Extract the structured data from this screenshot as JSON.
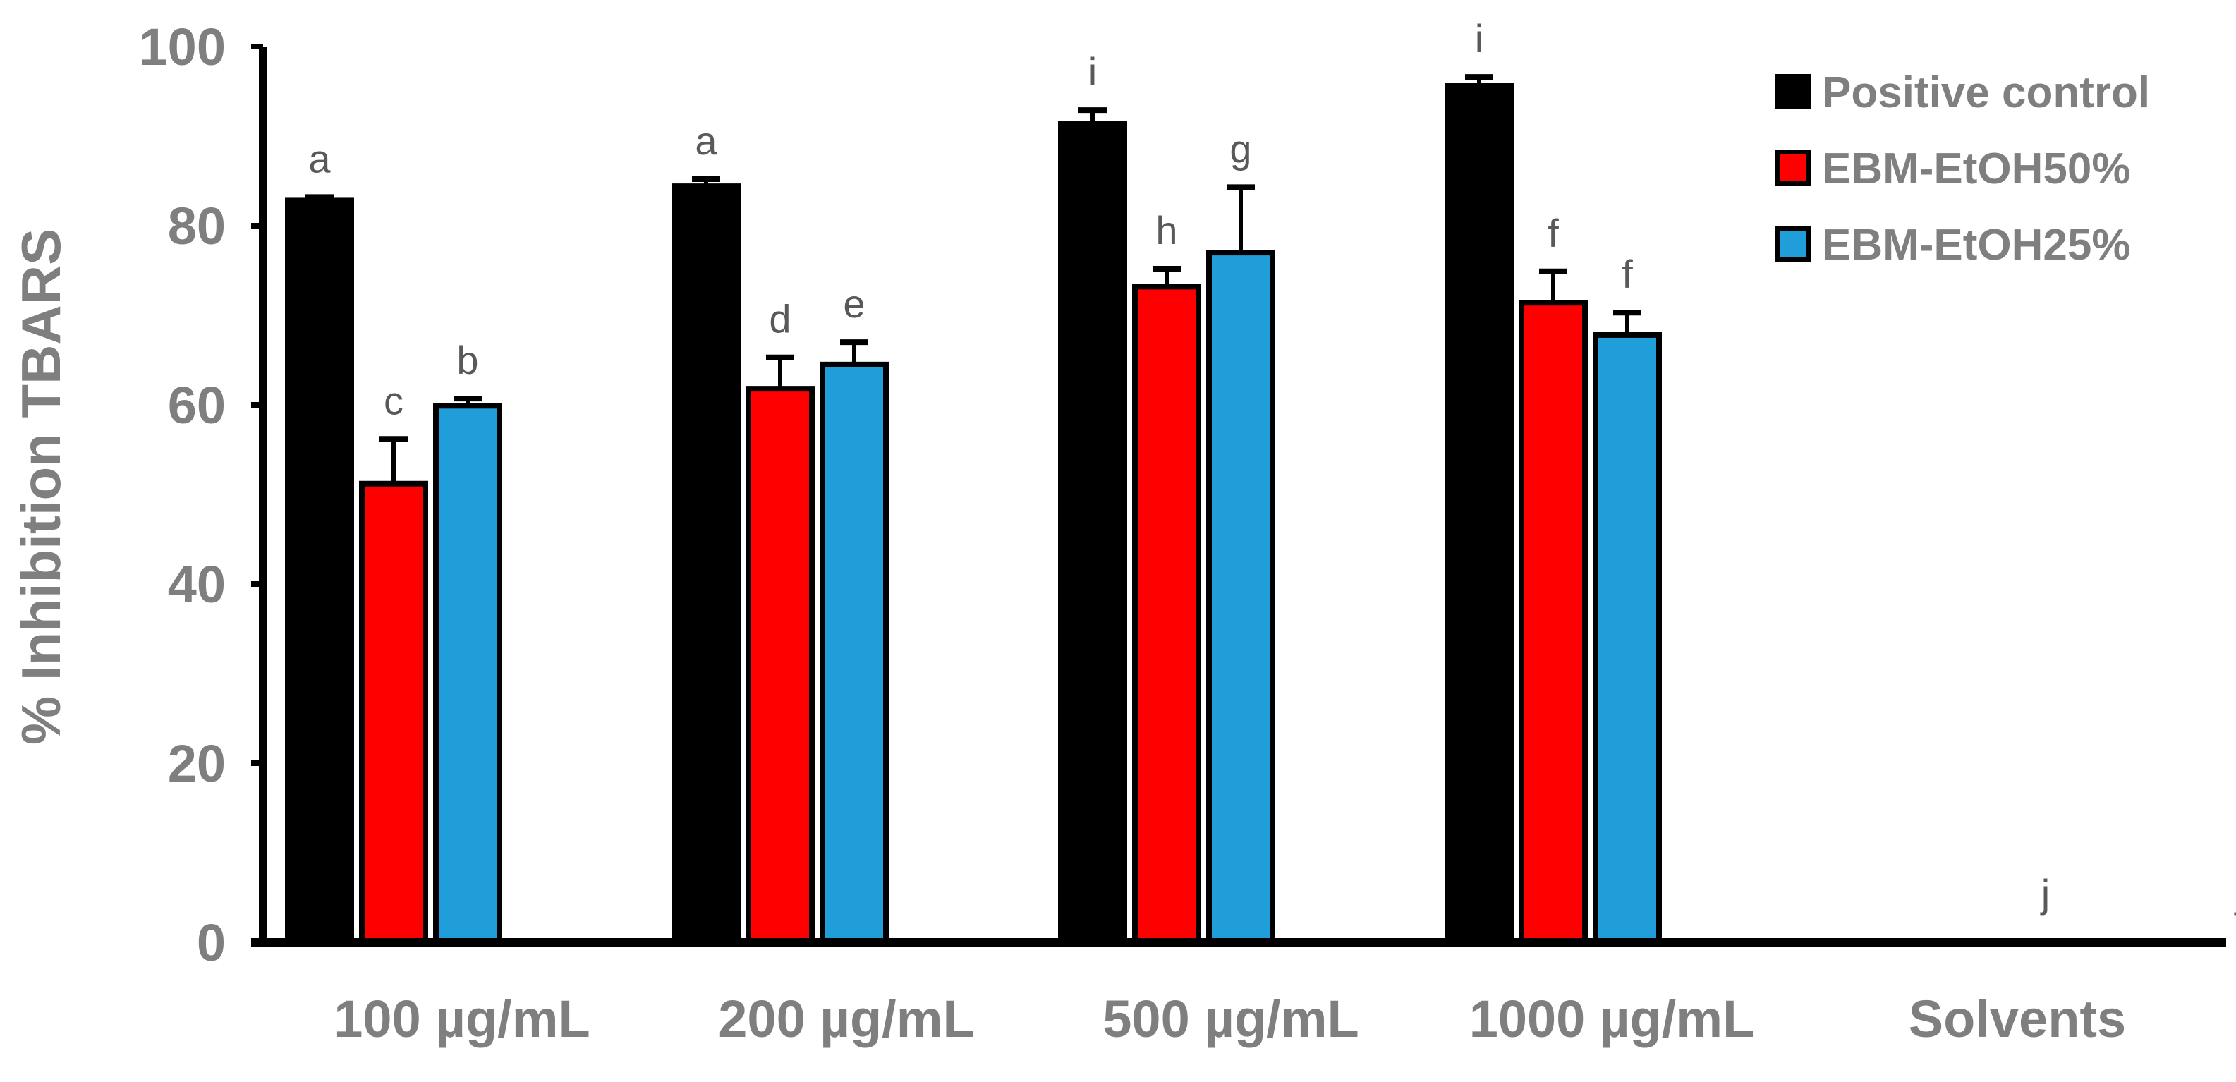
{
  "chart_data": {
    "type": "bar",
    "title": "",
    "xlabel": "",
    "ylabel": "% Inhibition TBARS",
    "ylim": [
      0,
      100
    ],
    "yticks": [
      "0",
      "20",
      "40",
      "60",
      "80",
      "100"
    ],
    "grid": false,
    "legend_position": "top-right",
    "categories": [
      "100 µg/mL",
      "200 µg/mL",
      "500 µg/mL",
      "1000 µg/mL",
      "Solvents"
    ],
    "series": [
      {
        "name": "Positive control",
        "color": "#000000",
        "values": [
          82.8,
          84.4,
          91.4,
          95.6,
          0
        ],
        "errors": [
          0.4,
          0.8,
          1.5,
          1.0,
          0
        ],
        "sig": [
          "a",
          "a",
          "i",
          "i",
          ""
        ]
      },
      {
        "name": "EBM-EtOH50%",
        "color": "#ff0000",
        "values": [
          51.2,
          61.8,
          73.2,
          71.4,
          0
        ],
        "errors": [
          5.0,
          3.5,
          2.0,
          3.5,
          0
        ],
        "sig": [
          "c",
          "d",
          "h",
          "f",
          "j"
        ]
      },
      {
        "name": "EBM-EtOH25%",
        "color": "#1f9ed9",
        "values": [
          59.9,
          64.5,
          77.0,
          67.8,
          0
        ],
        "errors": [
          0.8,
          2.5,
          7.3,
          2.5,
          0
        ],
        "sig": [
          "b",
          "e",
          "g",
          "f",
          "j"
        ]
      }
    ]
  }
}
